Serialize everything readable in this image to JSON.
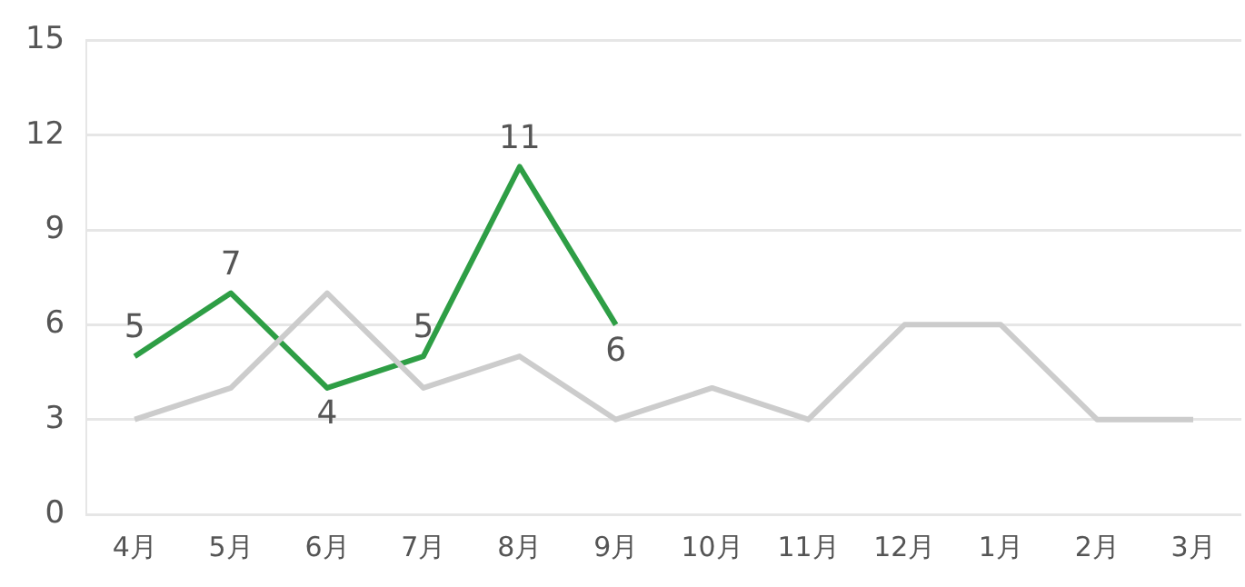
{
  "chart_data": {
    "type": "line",
    "categories": [
      "4月",
      "5月",
      "6月",
      "7月",
      "8月",
      "9月",
      "10月",
      "11月",
      "12月",
      "1月",
      "2月",
      "3月"
    ],
    "series": [
      {
        "color": "#cccccc",
        "values": [
          3,
          4,
          7,
          4,
          5,
          3,
          4,
          3,
          6,
          6,
          3,
          3
        ]
      },
      {
        "color": "#2e9e45",
        "values": [
          5,
          7,
          4,
          5,
          11,
          6,
          null,
          null,
          null,
          null,
          null,
          null
        ],
        "value_labels": [
          "5",
          "7",
          "4",
          "5",
          "11",
          "6",
          null,
          null,
          null,
          null,
          null,
          null
        ]
      }
    ],
    "ylim": [
      0,
      15
    ],
    "yticks": [
      0,
      3,
      6,
      9,
      12,
      15
    ],
    "grid": "y",
    "legend": false,
    "marker": "none",
    "line_style": "solid"
  }
}
